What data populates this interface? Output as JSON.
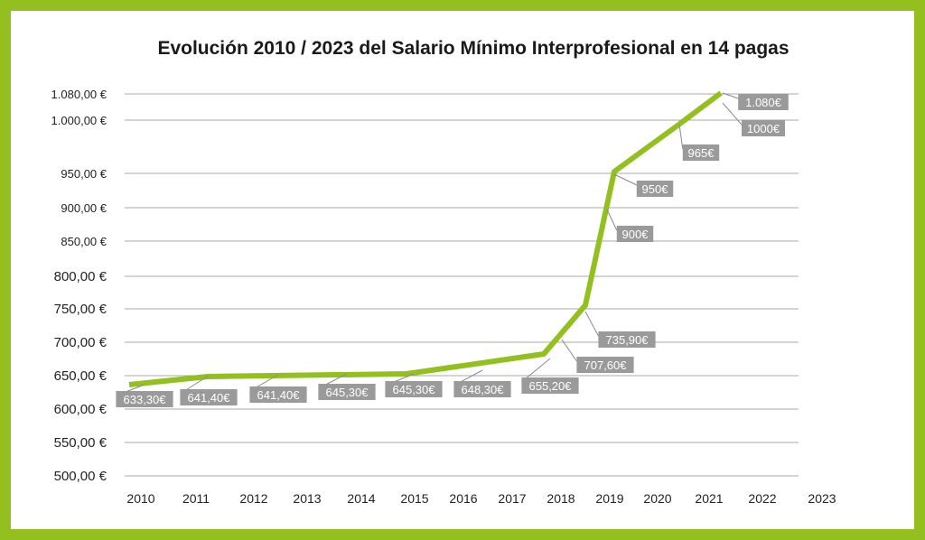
{
  "chart_data": {
    "type": "line",
    "title": "Evolución 2010 / 2023 del Salario Mínimo Interprofesional en 14 pagas",
    "xlabel": "",
    "ylabel": "",
    "grid": true,
    "legend": "none",
    "y_tick_labels": [
      "1.080,00 €",
      "1.000,00 €",
      "950,00 €",
      "900,00 €",
      "850,00 €",
      "800,00 €",
      "750,00 €",
      "700,00 €",
      "650,00 €",
      "600,00 €",
      "550,00 €",
      "500,00 €"
    ],
    "x_tick_labels": [
      "2010",
      "2011",
      "2012",
      "2013",
      "2014",
      "2015",
      "2016",
      "2017",
      "2018",
      "2019",
      "2020",
      "2021",
      "2022",
      "2023"
    ],
    "series": [
      {
        "color": "#93c01f",
        "values": [
          633.3,
          641.4,
          641.4,
          645.3,
          645.3,
          648.3,
          655.2,
          707.6,
          735.9,
          900,
          950,
          965,
          1000,
          1080
        ]
      }
    ],
    "data_labels": [
      "633,30€",
      "641,40€",
      "641,40€",
      "645,30€",
      "645,30€",
      "648,30€",
      "655,20€",
      "707,60€",
      "735,90€",
      "900€",
      "950€",
      "965€",
      "1000€",
      "1.080€"
    ],
    "label_color": "#9a9a9a"
  }
}
